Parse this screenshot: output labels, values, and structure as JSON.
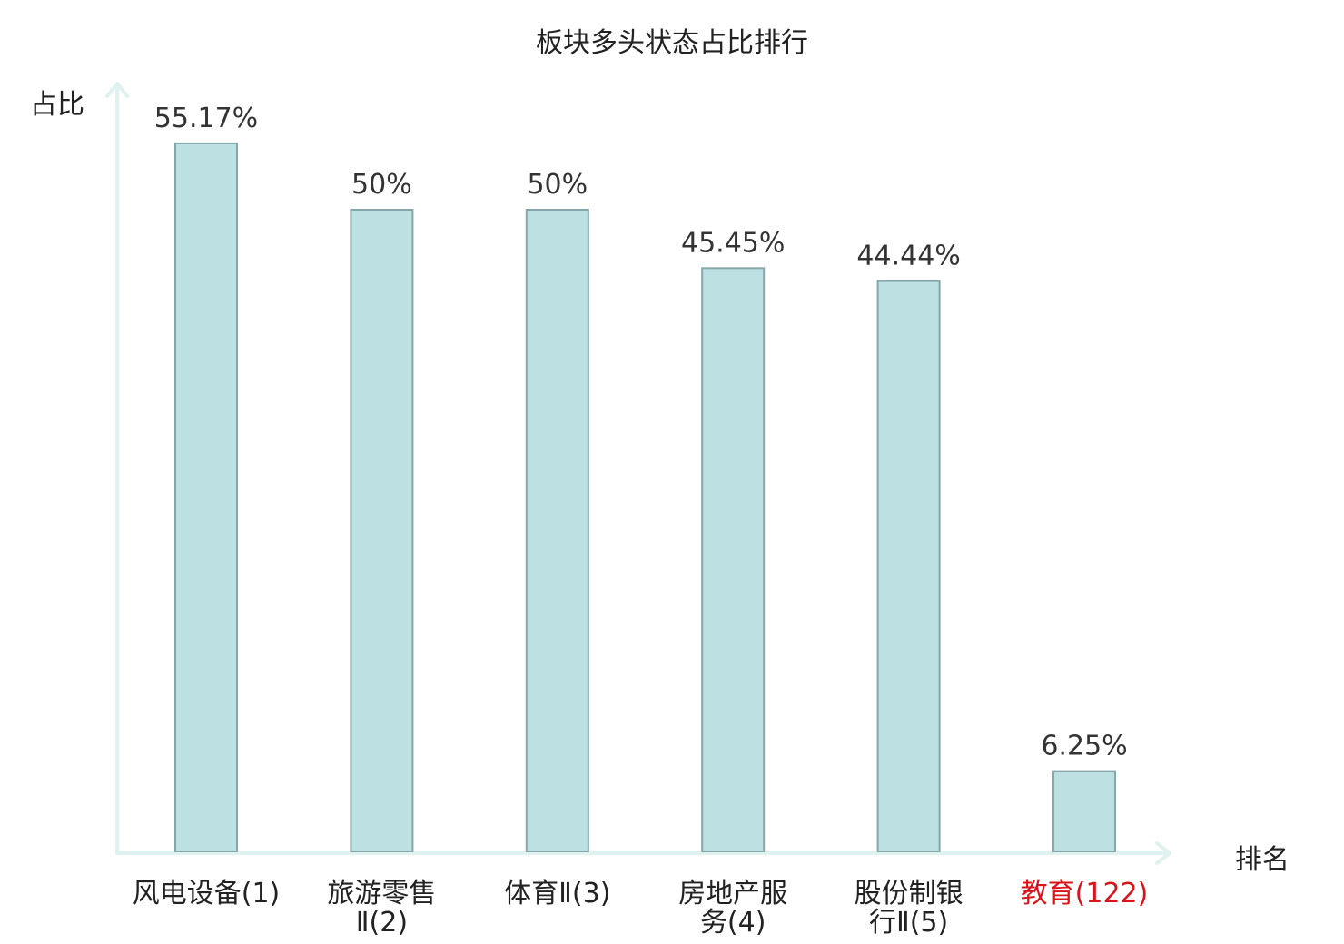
{
  "chart_data": {
    "type": "bar",
    "title": "板块多头状态占比排行",
    "ylabel": "占比",
    "xlabel": "排名",
    "categories": [
      {
        "lines": [
          "风电设备(1)"
        ],
        "highlight": false
      },
      {
        "lines": [
          "旅游零售",
          "Ⅱ(2)"
        ],
        "highlight": false
      },
      {
        "lines": [
          "体育Ⅱ(3)"
        ],
        "highlight": false
      },
      {
        "lines": [
          "房地产服",
          "务(4)"
        ],
        "highlight": false
      },
      {
        "lines": [
          "股份制银",
          "行Ⅱ(5)"
        ],
        "highlight": false
      },
      {
        "lines": [
          "教育(122)"
        ],
        "highlight": true
      }
    ],
    "values": [
      55.17,
      50,
      50,
      45.45,
      44.44,
      6.25
    ],
    "value_labels": [
      "55.17%",
      "50%",
      "50%",
      "45.45%",
      "44.44%",
      "6.25%"
    ],
    "ylim": [
      0,
      60
    ],
    "grid": false,
    "legend": "none",
    "colors": {
      "bar_fill": "#bde0e3",
      "bar_stroke": "#86a7aa",
      "axis": "#dff2ef",
      "label_text": "#333333",
      "highlight_text": "#d9141b"
    }
  }
}
